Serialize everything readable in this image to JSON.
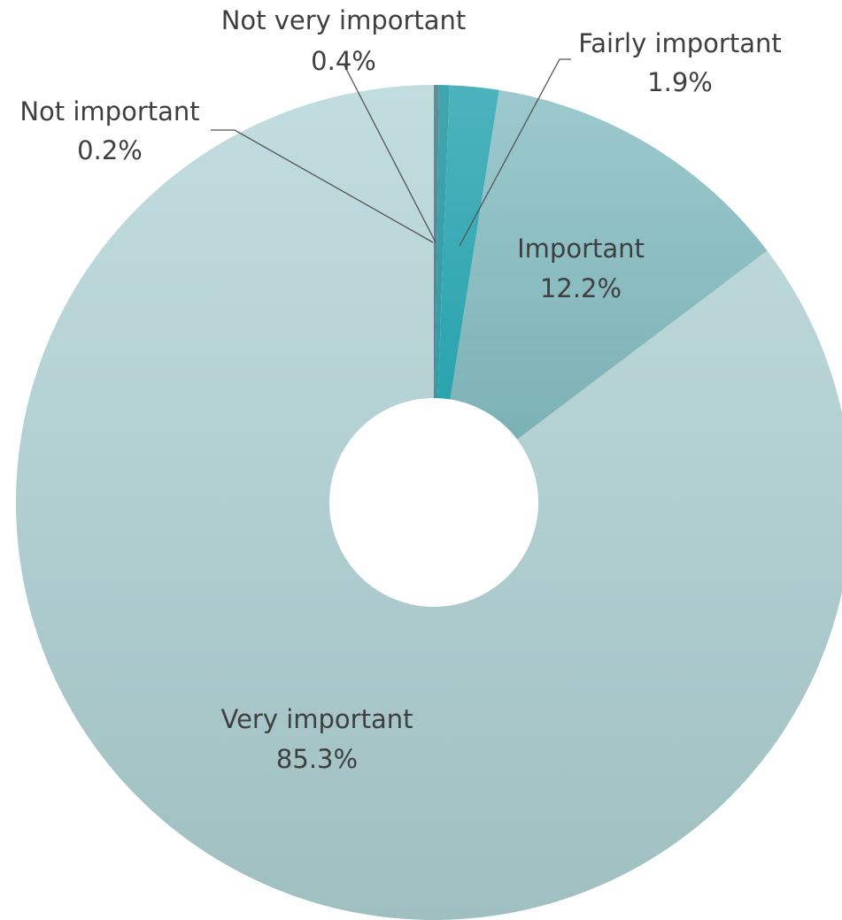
{
  "chart_data": {
    "type": "pie",
    "donut": true,
    "title": "",
    "slices": [
      {
        "label": "Not important",
        "value": 0.2,
        "value_text": "0.2%",
        "colors": [
          "#5e8f97",
          "#4f8089"
        ]
      },
      {
        "label": "Not very important",
        "value": 0.4,
        "value_text": "0.4%",
        "colors": [
          "#3fa6b0",
          "#2e97a2"
        ]
      },
      {
        "label": "Fairly important",
        "value": 1.9,
        "value_text": "1.9%",
        "colors": [
          "#4cb3bd",
          "#1f9ea8"
        ]
      },
      {
        "label": "Important",
        "value": 12.2,
        "value_text": "12.2%",
        "colors": [
          "#9cc9ce",
          "#76adb2"
        ]
      },
      {
        "label": "Very important",
        "value": 85.3,
        "value_text": "85.3%",
        "colors": [
          "#c2dde0",
          "#9fbfc1"
        ]
      }
    ],
    "start_angle_deg": 0,
    "direction": "clockwise",
    "legend": "none"
  }
}
